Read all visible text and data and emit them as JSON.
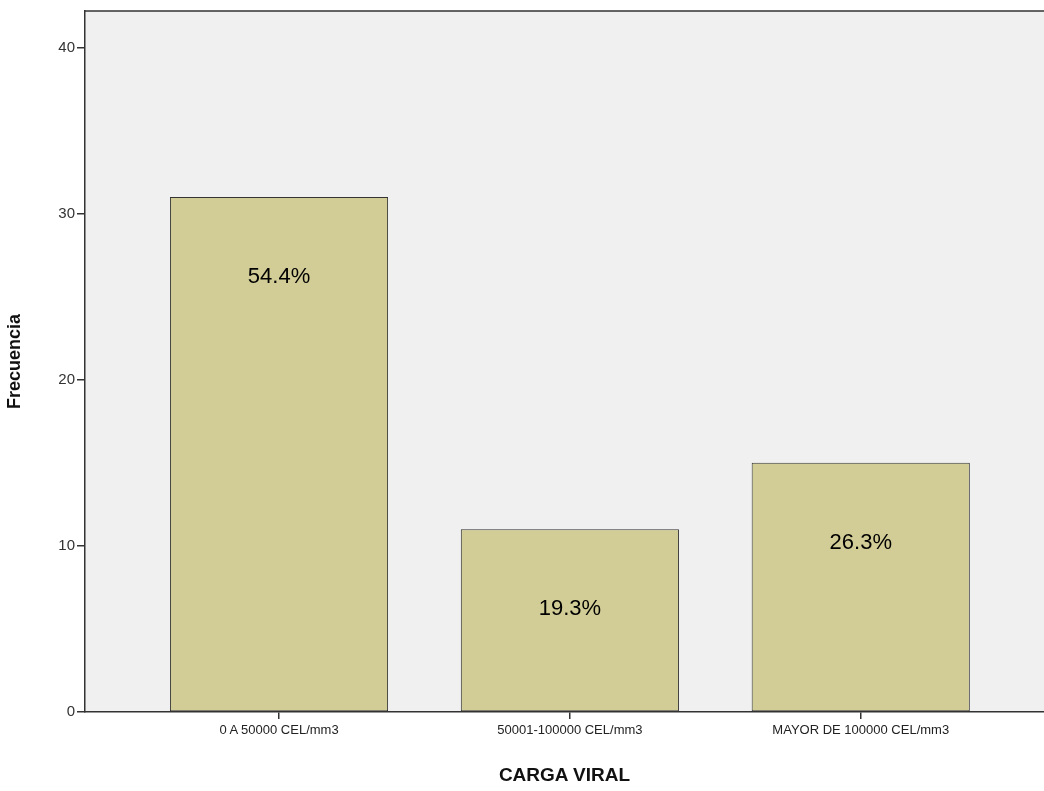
{
  "chart_data": {
    "type": "bar",
    "xlabel": "CARGA VIRAL",
    "ylabel": "Frecuencia",
    "categories": [
      "0 A 50000 CEL/mm3",
      "50001-100000 CEL/mm3",
      "MAYOR DE 100000 CEL/mm3"
    ],
    "values": [
      31,
      11,
      15
    ],
    "color": "#d2cd96",
    "annotations": [
      "54.4%",
      "19.3%",
      "26.3%"
    ],
    "ylim": [
      0,
      42.2
    ],
    "yticks": [
      0,
      10,
      20,
      30,
      40
    ]
  }
}
